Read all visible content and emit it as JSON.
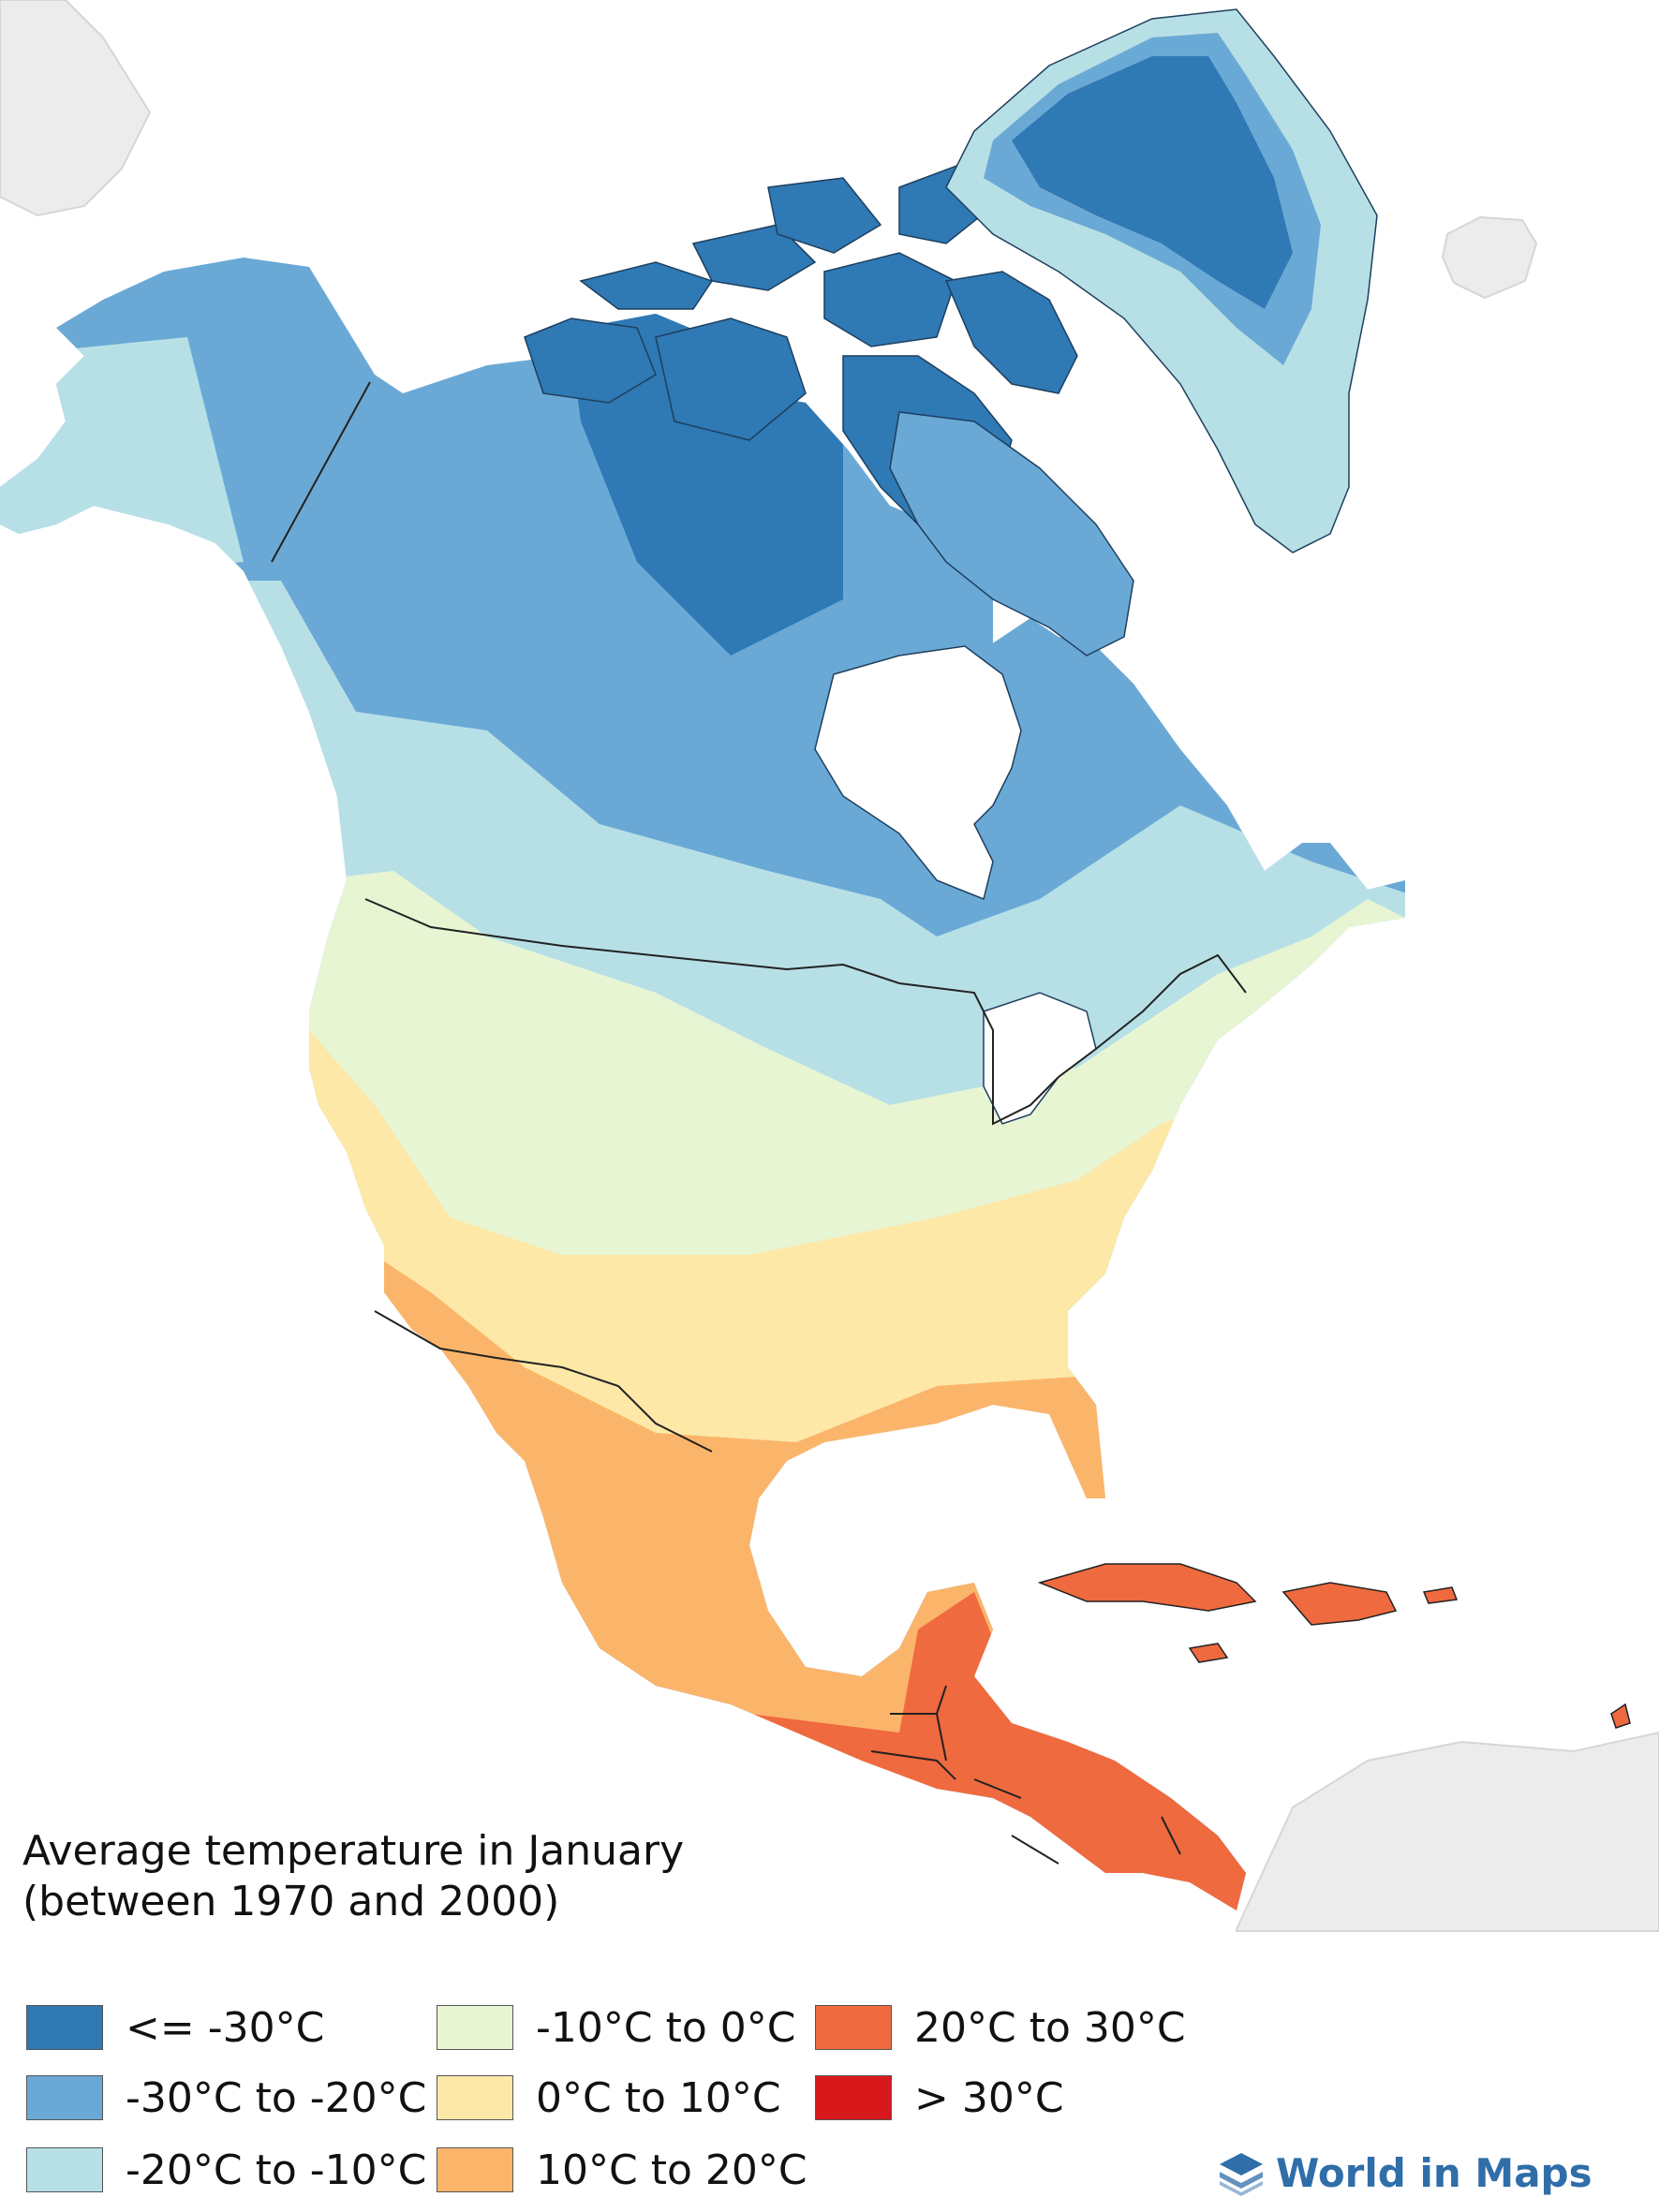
{
  "title": {
    "line1": "Average temperature in January",
    "line2": "(between 1970 and 2000)"
  },
  "legend": [
    {
      "label": "<= -30°C",
      "color": "#2f79b5"
    },
    {
      "label": "-30°C to -20°C",
      "color": "#6aa9d5"
    },
    {
      "label": "-20°C to -10°C",
      "color": "#b7e0e6"
    },
    {
      "label": "-10°C to 0°C",
      "color": "#e7f5d3"
    },
    {
      "label": "0°C to 10°C",
      "color": "#fde8a8"
    },
    {
      "label": "10°C to 20°C",
      "color": "#fbb56a"
    },
    {
      "label": "20°C to 30°C",
      "color": "#ef6a3f"
    },
    {
      "label": "> 30°C",
      "color": "#d7191c"
    }
  ],
  "brand": {
    "name": "World in Maps",
    "icon": "layers-icon",
    "color": "#2f6ea8"
  },
  "colors": {
    "ocean": "#ffffff",
    "other_land": "#ececec",
    "border": "#222222"
  }
}
